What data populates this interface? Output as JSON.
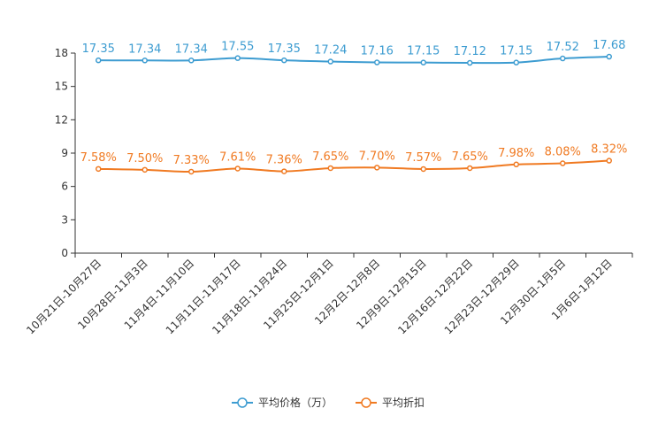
{
  "chart_data": {
    "type": "line",
    "categories": [
      "10月21日-10月27日",
      "10月28日-11月3日",
      "11月4日-11月10日",
      "11月11日-11月17日",
      "11月18日-11月24日",
      "11月25日-12月1日",
      "12月2日-12月8日",
      "12月9日-12月15日",
      "12月16日-12月22日",
      "12月23日-12月29日",
      "12月30日-1月5日",
      "1月6日-1月12日"
    ],
    "ylim": [
      0,
      18
    ],
    "yticks": [
      0,
      3,
      6,
      9,
      12,
      15,
      18
    ],
    "series": [
      {
        "name": "平均价格（万）",
        "color": "#3d9cd1",
        "values": [
          17.35,
          17.34,
          17.34,
          17.55,
          17.35,
          17.24,
          17.16,
          17.15,
          17.12,
          17.15,
          17.52,
          17.68
        ],
        "labels": [
          "17.35",
          "17.34",
          "17.34",
          "17.55",
          "17.35",
          "17.24",
          "17.16",
          "17.15",
          "17.12",
          "17.15",
          "17.52",
          "17.68"
        ]
      },
      {
        "name": "平均折扣",
        "color": "#f07a22",
        "values": [
          7.58,
          7.5,
          7.33,
          7.61,
          7.36,
          7.65,
          7.7,
          7.57,
          7.65,
          7.98,
          8.08,
          8.32
        ],
        "labels": [
          "7.58%",
          "7.50%",
          "7.33%",
          "7.61%",
          "7.36%",
          "7.65%",
          "7.70%",
          "7.57%",
          "7.65%",
          "7.98%",
          "8.08%",
          "8.32%"
        ]
      }
    ],
    "legend_position": "bottom-center",
    "title": "",
    "xlabel": "",
    "ylabel": ""
  }
}
